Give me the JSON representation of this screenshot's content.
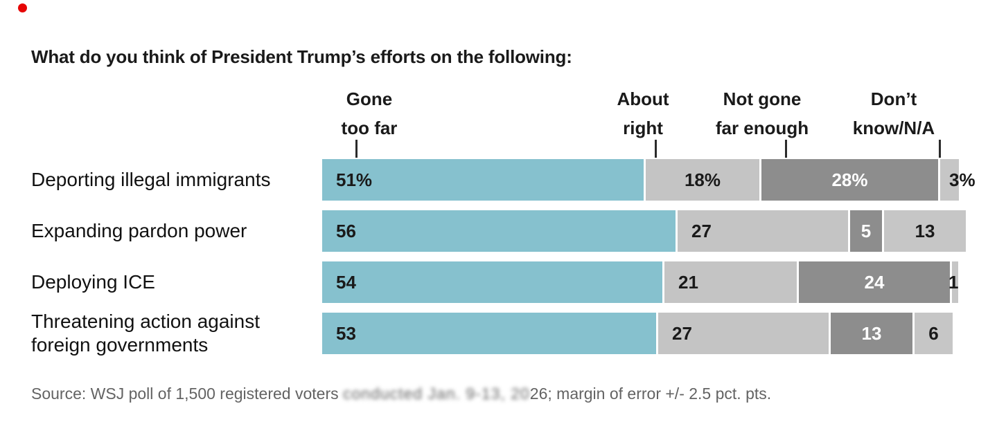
{
  "marker": {
    "color": "#e60505"
  },
  "title": "What do you think of President Trump’s efforts on the following:",
  "headers": [
    {
      "line1": "Gone",
      "line2": "too far"
    },
    {
      "line1": "About",
      "line2": "right"
    },
    {
      "line1": "Not gone",
      "line2": "far enough"
    },
    {
      "line1": "Don’t",
      "line2": "know/N/A"
    }
  ],
  "chart_data": {
    "type": "bar",
    "stacked": true,
    "orientation": "horizontal",
    "title": "What do you think of President Trump’s efforts on the following:",
    "xlim": [
      0,
      100
    ],
    "unit": "percent",
    "grid": false,
    "legend_position": "top-as-column-headers",
    "categories": [
      "Deporting illegal immigrants",
      "Expanding pardon power",
      "Deploying ICE",
      "Threatening action against foreign governments"
    ],
    "series": [
      {
        "name": "Gone too far",
        "color": "#86c1ce",
        "text_color": "#1a1a1a",
        "values": [
          51,
          56,
          54,
          53
        ]
      },
      {
        "name": "About right",
        "color": "#c4c4c4",
        "text_color": "#1a1a1a",
        "values": [
          18,
          27,
          21,
          27
        ]
      },
      {
        "name": "Not gone far enough",
        "color": "#8d8d8d",
        "text_color": "#ffffff",
        "values": [
          28,
          5,
          24,
          13
        ]
      },
      {
        "name": "Don’t know/N/A",
        "color": "#c6c6c6",
        "text_color": "#1a1a1a",
        "values": [
          3,
          13,
          1,
          6
        ]
      }
    ],
    "value_labels": [
      [
        "51%",
        "18%",
        "28%",
        "3%"
      ],
      [
        "56",
        "27",
        "5",
        "13"
      ],
      [
        "54",
        "21",
        "24",
        "1"
      ],
      [
        "53",
        "27",
        "13",
        "6"
      ]
    ],
    "label_align": [
      [
        "in-left",
        "center",
        "center",
        "outside"
      ],
      [
        "in-left",
        "in-left",
        "center",
        "center"
      ],
      [
        "in-left",
        "in-left",
        "center",
        "outside"
      ],
      [
        "in-left",
        "in-left",
        "center",
        "center"
      ]
    ]
  },
  "source": {
    "prefix": "Source: WSJ  poll of 1,500 registered voters ",
    "smeared": "conducted Jan. 9-13, 20",
    "suffix": "26; margin of error +/- 2.5 pct. pts."
  }
}
